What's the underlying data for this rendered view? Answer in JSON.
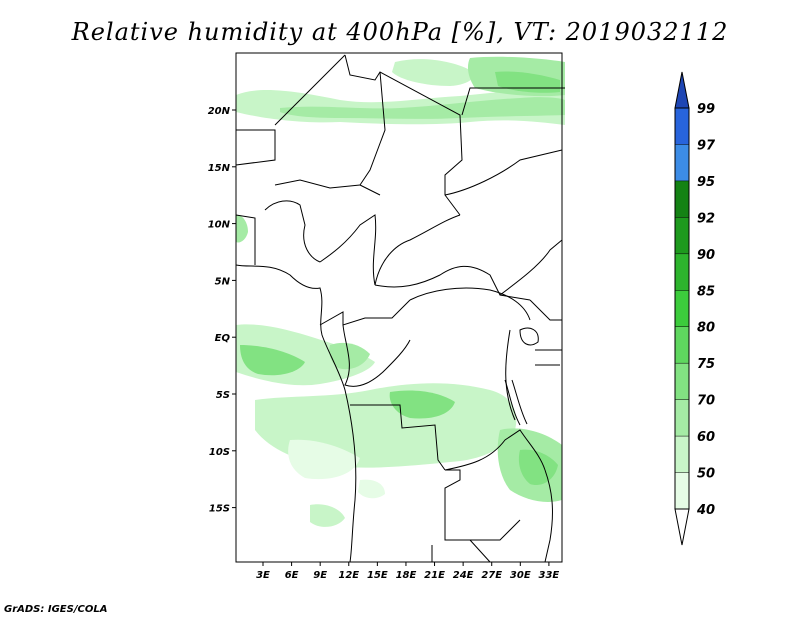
{
  "title": "Relative humidity at 400hPa [%], VT: 2019032112",
  "credit": "GrADS: IGES/COLA",
  "map": {
    "lon_range": [
      0,
      36
    ],
    "lat_range": [
      -20,
      25
    ],
    "lat_ticks": [
      {
        "label": "20N",
        "value": 20
      },
      {
        "label": "15N",
        "value": 15
      },
      {
        "label": "10N",
        "value": 10
      },
      {
        "label": "5N",
        "value": 5
      },
      {
        "label": "EQ",
        "value": 0
      },
      {
        "label": "5S",
        "value": -5
      },
      {
        "label": "10S",
        "value": -10
      },
      {
        "label": "15S",
        "value": -15
      }
    ],
    "lon_ticks": [
      {
        "label": "3E",
        "value": 3
      },
      {
        "label": "6E",
        "value": 6
      },
      {
        "label": "9E",
        "value": 9
      },
      {
        "label": "12E",
        "value": 12
      },
      {
        "label": "15E",
        "value": 15
      },
      {
        "label": "18E",
        "value": 18
      },
      {
        "label": "21E",
        "value": 21
      },
      {
        "label": "24E",
        "value": 24
      },
      {
        "label": "27E",
        "value": 27
      },
      {
        "label": "30E",
        "value": 30
      },
      {
        "label": "33E",
        "value": 33
      }
    ]
  },
  "colorbar": {
    "levels": [
      "40",
      "50",
      "60",
      "70",
      "75",
      "80",
      "85",
      "90",
      "92",
      "95",
      "97",
      "99"
    ],
    "colors": [
      "#ffffff",
      "#e6fce6",
      "#c8f5c8",
      "#a5eba5",
      "#82e282",
      "#5fd75f",
      "#3ccc3c",
      "#2db42d",
      "#1e9a1e",
      "#148214",
      "#3c8ce6",
      "#2864dc",
      "#1e46b4"
    ]
  },
  "map_colors": {
    "land_border": "#000000",
    "frame": "#000000"
  }
}
